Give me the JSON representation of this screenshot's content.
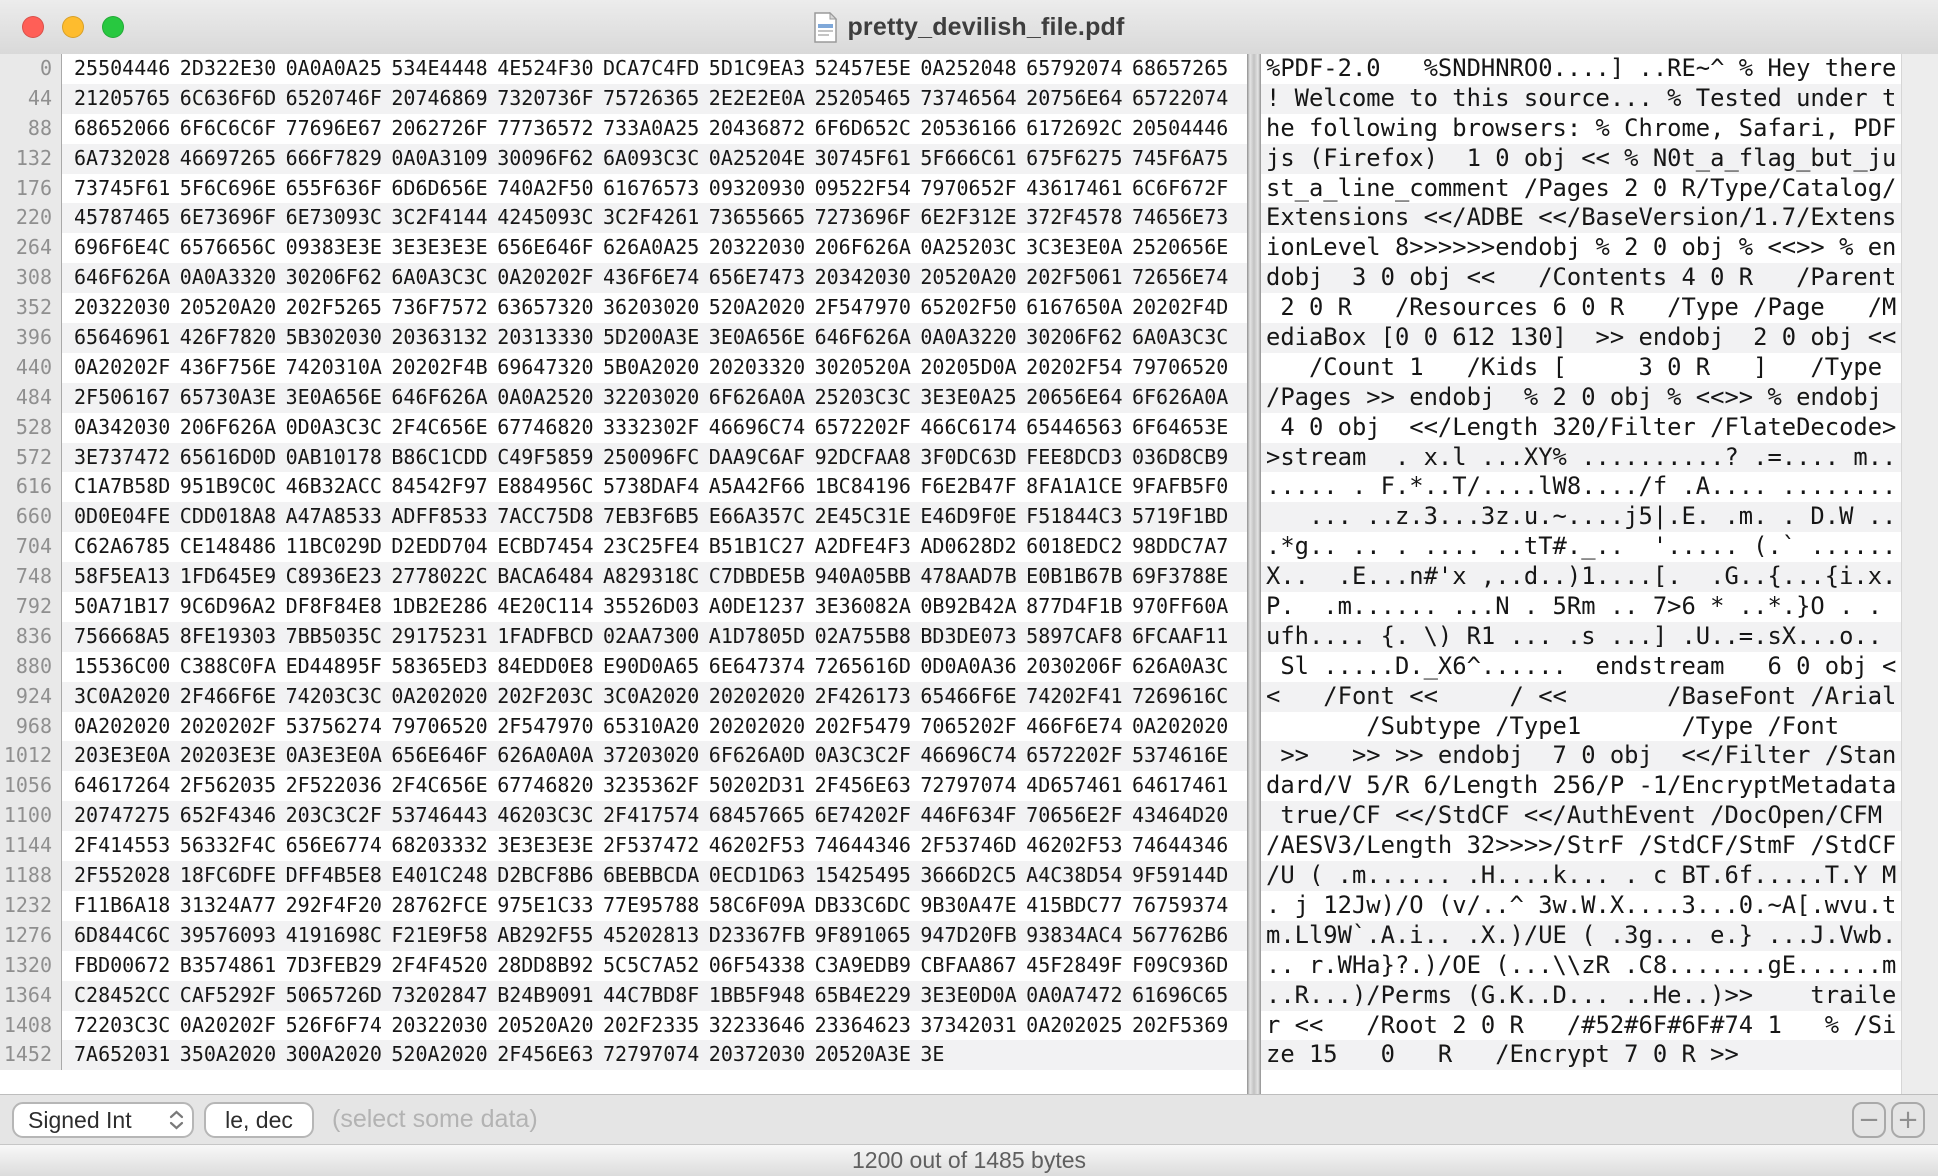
{
  "window": {
    "title": "pretty_devilish_file.pdf",
    "traffic_lights": {
      "close": "#ff5f57",
      "minimize": "#febc2e",
      "zoom": "#28c840"
    }
  },
  "toolbar": {
    "type_selector_value": "Signed Int",
    "format_field_value": "le, dec",
    "hint": "(select some data)",
    "zoom_out_label": "−",
    "zoom_in_label": "+"
  },
  "status_bar": {
    "text": "1200 out of 1485 bytes"
  },
  "hex_editor": {
    "bytes_per_row": 44,
    "rows": [
      {
        "offset": "0",
        "hex": [
          "25504446",
          "2D322E30",
          "0A0A0A25",
          "534E4448",
          "4E524F30",
          "DCA7C4FD",
          "5D1C9EA3",
          "52457E5E",
          "0A252048",
          "65792074",
          "68657265"
        ],
        "ascii": "%PDF-2.0   %SNDHNRO0....] ..RE~^ % Hey there"
      },
      {
        "offset": "44",
        "hex": [
          "21205765",
          "6C636F6D",
          "6520746F",
          "20746869",
          "7320736F",
          "75726365",
          "2E2E2E0A",
          "25205465",
          "73746564",
          "20756E64",
          "65722074"
        ],
        "ascii": "! Welcome to this source... % Tested under t"
      },
      {
        "offset": "88",
        "hex": [
          "68652066",
          "6F6C6C6F",
          "77696E67",
          "2062726F",
          "77736572",
          "733A0A25",
          "20436872",
          "6F6D652C",
          "20536166",
          "6172692C",
          "20504446"
        ],
        "ascii": "he following browsers: % Chrome, Safari, PDF"
      },
      {
        "offset": "132",
        "hex": [
          "6A732028",
          "46697265",
          "666F7829",
          "0A0A3109",
          "30096F62",
          "6A093C3C",
          "0A25204E",
          "30745F61",
          "5F666C61",
          "675F6275",
          "745F6A75"
        ],
        "ascii": "js (Firefox)  1 0 obj << % N0t_a_flag_but_ju"
      },
      {
        "offset": "176",
        "hex": [
          "73745F61",
          "5F6C696E",
          "655F636F",
          "6D6D656E",
          "740A2F50",
          "61676573",
          "09320930",
          "09522F54",
          "7970652F",
          "43617461",
          "6C6F672F"
        ],
        "ascii": "st_a_line_comment /Pages 2 0 R/Type/Catalog/"
      },
      {
        "offset": "220",
        "hex": [
          "45787465",
          "6E73696F",
          "6E73093C",
          "3C2F4144",
          "4245093C",
          "3C2F4261",
          "73655665",
          "7273696F",
          "6E2F312E",
          "372F4578",
          "74656E73"
        ],
        "ascii": "Extensions <</ADBE <</BaseVersion/1.7/Extens"
      },
      {
        "offset": "264",
        "hex": [
          "696F6E4C",
          "6576656C",
          "09383E3E",
          "3E3E3E3E",
          "656E646F",
          "626A0A25",
          "20322030",
          "206F626A",
          "0A25203C",
          "3C3E3E0A",
          "2520656E"
        ],
        "ascii": "ionLevel 8>>>>>>endobj % 2 0 obj % <<>> % en"
      },
      {
        "offset": "308",
        "hex": [
          "646F626A",
          "0A0A3320",
          "30206F62",
          "6A0A3C3C",
          "0A20202F",
          "436F6E74",
          "656E7473",
          "20342030",
          "20520A20",
          "202F5061",
          "72656E74"
        ],
        "ascii": "dobj  3 0 obj <<   /Contents 4 0 R   /Parent"
      },
      {
        "offset": "352",
        "hex": [
          "20322030",
          "20520A20",
          "202F5265",
          "736F7572",
          "63657320",
          "36203020",
          "520A2020",
          "2F547970",
          "65202F50",
          "6167650A",
          "20202F4D"
        ],
        "ascii": " 2 0 R   /Resources 6 0 R   /Type /Page   /M"
      },
      {
        "offset": "396",
        "hex": [
          "65646961",
          "426F7820",
          "5B302030",
          "20363132",
          "20313330",
          "5D200A3E",
          "3E0A656E",
          "646F626A",
          "0A0A3220",
          "30206F62",
          "6A0A3C3C"
        ],
        "ascii": "ediaBox [0 0 612 130]  >> endobj  2 0 obj <<"
      },
      {
        "offset": "440",
        "hex": [
          "0A20202F",
          "436F756E",
          "7420310A",
          "20202F4B",
          "69647320",
          "5B0A2020",
          "20203320",
          "3020520A",
          "20205D0A",
          "20202F54",
          "79706520"
        ],
        "ascii": "   /Count 1   /Kids [     3 0 R   ]   /Type "
      },
      {
        "offset": "484",
        "hex": [
          "2F506167",
          "65730A3E",
          "3E0A656E",
          "646F626A",
          "0A0A2520",
          "32203020",
          "6F626A0A",
          "25203C3C",
          "3E3E0A25",
          "20656E64",
          "6F626A0A"
        ],
        "ascii": "/Pages >> endobj  % 2 0 obj % <<>> % endobj "
      },
      {
        "offset": "528",
        "hex": [
          "0A342030",
          "206F626A",
          "0D0A3C3C",
          "2F4C656E",
          "67746820",
          "3332302F",
          "46696C74",
          "6572202F",
          "466C6174",
          "65446563",
          "6F64653E"
        ],
        "ascii": " 4 0 obj  <</Length 320/Filter /FlateDecode>"
      },
      {
        "offset": "572",
        "hex": [
          "3E737472",
          "65616D0D",
          "0AB10178",
          "B86C1CDD",
          "C49F5859",
          "250096FC",
          "DAA9C6AF",
          "92DCFAA8",
          "3F0DC63D",
          "FEE8DCD3",
          "036D8CB9"
        ],
        "ascii": ">stream  . x.l ...XY% ..........? .=.... m.."
      },
      {
        "offset": "616",
        "hex": [
          "C1A7B58D",
          "951B9C0C",
          "46B32ACC",
          "84542F97",
          "E884956C",
          "5738DAF4",
          "A5A42F66",
          "1BC84196",
          "F6E2B47F",
          "8FA1A1CE",
          "9FAFB5F0"
        ],
        "ascii": "..... . F.*..T/....lW8..../f .A.... ........"
      },
      {
        "offset": "660",
        "hex": [
          "0D0E04FE",
          "CDD018A8",
          "A47A8533",
          "ADFF8533",
          "7ACC75D8",
          "7EB3F6B5",
          "E66A357C",
          "2E45C31E",
          "E46D9F0E",
          "F51844C3",
          "5719F1BD"
        ],
        "ascii": "   ... ..z.3...3z.u.~....j5|.E. .m. . D.W .."
      },
      {
        "offset": "704",
        "hex": [
          "C62A6785",
          "CE148486",
          "11BC029D",
          "D2EDD704",
          "ECBD7454",
          "23C25FE4",
          "B51B1C27",
          "A2DFE4F3",
          "AD0628D2",
          "6018EDC2",
          "98DDC7A7"
        ],
        "ascii": ".*g.. .. . .... ..tT#._..  '..... (.` ......"
      },
      {
        "offset": "748",
        "hex": [
          "58F5EA13",
          "1FD645E9",
          "C8936E23",
          "2778022C",
          "BACA6484",
          "A829318C",
          "C7DBDE5B",
          "940A05BB",
          "478AAD7B",
          "E0B1B67B",
          "69F3788E"
        ],
        "ascii": "X..  .E...n#'x ,..d..)1....[.  .G..{...{i.x."
      },
      {
        "offset": "792",
        "hex": [
          "50A71B17",
          "9C6D96A2",
          "DF8F84E8",
          "1DB2E286",
          "4E20C114",
          "35526D03",
          "A0DE1237",
          "3E36082A",
          "0B92B42A",
          "877D4F1B",
          "970FF60A"
        ],
        "ascii": "P.  .m...... ...N . 5Rm .. 7>6 * ..*.}O . . "
      },
      {
        "offset": "836",
        "hex": [
          "756668A5",
          "8FE19303",
          "7BB5035C",
          "29175231",
          "1FADFBCD",
          "02AA7300",
          "A1D7805D",
          "02A755B8",
          "BD3DE073",
          "5897CAF8",
          "6FCAAF11"
        ],
        "ascii": "ufh.... {. \\) R1 ... .s ...] .U..=.sX...o.. "
      },
      {
        "offset": "880",
        "hex": [
          "15536C00",
          "C388C0FA",
          "ED44895F",
          "58365ED3",
          "84EDD0E8",
          "E90D0A65",
          "6E647374",
          "7265616D",
          "0D0A0A36",
          "2030206F",
          "626A0A3C"
        ],
        "ascii": " Sl .....D._X6^......  endstream   6 0 obj <"
      },
      {
        "offset": "924",
        "hex": [
          "3C0A2020",
          "2F466F6E",
          "74203C3C",
          "0A202020",
          "202F203C",
          "3C0A2020",
          "20202020",
          "2F426173",
          "65466F6E",
          "74202F41",
          "7269616C"
        ],
        "ascii": "<   /Font <<     / <<       /BaseFont /Arial"
      },
      {
        "offset": "968",
        "hex": [
          "0A202020",
          "2020202F",
          "53756274",
          "79706520",
          "2F547970",
          "65310A20",
          "20202020",
          "202F5479",
          "7065202F",
          "466F6E74",
          "0A202020"
        ],
        "ascii": "       /Subtype /Type1       /Type /Font    "
      },
      {
        "offset": "1012",
        "hex": [
          "203E3E0A",
          "20203E3E",
          "0A3E3E0A",
          "656E646F",
          "626A0A0A",
          "37203020",
          "6F626A0D",
          "0A3C3C2F",
          "46696C74",
          "6572202F",
          "5374616E"
        ],
        "ascii": " >>   >> >> endobj  7 0 obj  <</Filter /Stan"
      },
      {
        "offset": "1056",
        "hex": [
          "64617264",
          "2F562035",
          "2F522036",
          "2F4C656E",
          "67746820",
          "3235362F",
          "50202D31",
          "2F456E63",
          "72797074",
          "4D657461",
          "64617461"
        ],
        "ascii": "dard/V 5/R 6/Length 256/P -1/EncryptMetadata"
      },
      {
        "offset": "1100",
        "hex": [
          "20747275",
          "652F4346",
          "203C3C2F",
          "53746443",
          "46203C3C",
          "2F417574",
          "68457665",
          "6E74202F",
          "446F634F",
          "70656E2F",
          "43464D20"
        ],
        "ascii": " true/CF <</StdCF <</AuthEvent /DocOpen/CFM "
      },
      {
        "offset": "1144",
        "hex": [
          "2F414553",
          "56332F4C",
          "656E6774",
          "68203332",
          "3E3E3E3E",
          "2F537472",
          "46202F53",
          "74644346",
          "2F53746D",
          "46202F53",
          "74644346"
        ],
        "ascii": "/AESV3/Length 32>>>>/StrF /StdCF/StmF /StdCF"
      },
      {
        "offset": "1188",
        "hex": [
          "2F552028",
          "18FC6DFE",
          "DFF4B5E8",
          "E401C248",
          "D2BCF8B6",
          "6BEBBCDA",
          "0ECD1D63",
          "15425495",
          "3666D2C5",
          "A4C38D54",
          "9F59144D"
        ],
        "ascii": "/U ( .m...... .H....k... . c BT.6f.....T.Y M"
      },
      {
        "offset": "1232",
        "hex": [
          "F11B6A18",
          "31324A77",
          "292F4F20",
          "28762FCE",
          "975E1C33",
          "77E95788",
          "58C6F09A",
          "DB33C6DC",
          "9B30A47E",
          "415BDC77",
          "76759374"
        ],
        "ascii": ". j 12Jw)/O (v/..^ 3w.W.X....3...0.~A[.wvu.t"
      },
      {
        "offset": "1276",
        "hex": [
          "6D844C6C",
          "39576093",
          "4191698C",
          "F21E9F58",
          "AB292F55",
          "45202813",
          "D23367FB",
          "9F891065",
          "947D20FB",
          "93834AC4",
          "567762B6"
        ],
        "ascii": "m.Ll9W`.A.i.. .X.)/UE ( .3g... e.} ...J.Vwb."
      },
      {
        "offset": "1320",
        "hex": [
          "FBD00672",
          "B3574861",
          "7D3FEB29",
          "2F4F4520",
          "28DD8B92",
          "5C5C7A52",
          "06F54338",
          "C3A9EDB9",
          "CBFAA867",
          "45F2849F",
          "F09C936D"
        ],
        "ascii": ".. r.WHa}?.)/OE (...\\\\zR .C8.......gE......m"
      },
      {
        "offset": "1364",
        "hex": [
          "C28452CC",
          "CAF5292F",
          "5065726D",
          "73202847",
          "B24B9091",
          "44C7BD8F",
          "1BB5F948",
          "65B4E229",
          "3E3E0D0A",
          "0A0A7472",
          "61696C65"
        ],
        "ascii": "..R...)/Perms (G.K..D... ..He..)>>    traile"
      },
      {
        "offset": "1408",
        "hex": [
          "72203C3C",
          "0A20202F",
          "526F6F74",
          "20322030",
          "20520A20",
          "202F2335",
          "32233646",
          "23364623",
          "37342031",
          "0A202025",
          "202F5369"
        ],
        "ascii": "r <<   /Root 2 0 R   /#52#6F#6F#74 1   % /Si"
      },
      {
        "offset": "1452",
        "hex": [
          "7A652031",
          "350A2020",
          "300A2020",
          "520A2020",
          "2F456E63",
          "72797074",
          "20372030",
          "20520A3E",
          "3E"
        ],
        "ascii": "ze 15   0   R   /Encrypt 7 0 R >>"
      }
    ]
  }
}
